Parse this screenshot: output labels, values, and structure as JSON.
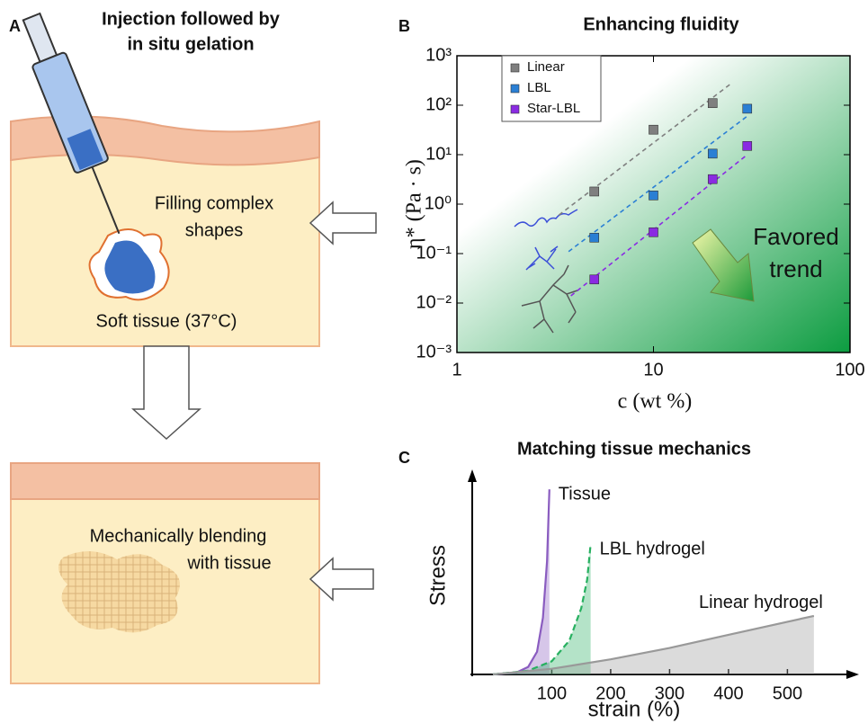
{
  "panel_a": {
    "panel_label": "A",
    "title_lines": [
      "Injection followed by",
      "in situ gelation"
    ],
    "filling_lines": [
      "Filling complex",
      "shapes"
    ],
    "tissue_label": "Soft tissue (37°C)",
    "blending_lines": [
      "Mechanically blending",
      "with tissue"
    ]
  },
  "chart_data": [
    {
      "type": "scatter",
      "panel_label": "B",
      "title": "Enhancing fluidity",
      "xlabel": "c (wt %)",
      "ylabel": "η* (Pa · s)",
      "xlim": [
        1,
        100
      ],
      "ylim": [
        0.001,
        1000
      ],
      "log_x": true,
      "log_y": true,
      "xticks": [
        1,
        10,
        100
      ],
      "yticks": [
        {
          "value": 0.001,
          "label": "10⁻³"
        },
        {
          "value": 0.01,
          "label": "10⁻²"
        },
        {
          "value": 0.1,
          "label": "10⁻¹"
        },
        {
          "value": 1,
          "label": "10⁰"
        },
        {
          "value": 10,
          "label": "10¹"
        },
        {
          "value": 100,
          "label": "10²"
        },
        {
          "value": 1000,
          "label": "10³"
        }
      ],
      "legend": "upper left",
      "series": [
        {
          "name": "Linear",
          "color": "#7f7f7f",
          "x": [
            5,
            10,
            20
          ],
          "values": [
            1.8,
            32,
            110
          ]
        },
        {
          "name": "LBL",
          "color": "#2a7fd4",
          "x": [
            5,
            10,
            20,
            30
          ],
          "values": [
            0.21,
            1.5,
            10.5,
            85
          ]
        },
        {
          "name": "Star-LBL",
          "color": "#8a2be2",
          "x": [
            5,
            10,
            20,
            30
          ],
          "values": [
            0.03,
            0.27,
            3.2,
            15
          ]
        }
      ],
      "fits": [
        {
          "color": "#7f7f7f",
          "x": [
            3.3,
            25
          ],
          "values": [
            0.6,
            280
          ]
        },
        {
          "color": "#2a7fd4",
          "x": [
            3.7,
            30
          ],
          "values": [
            0.11,
            60
          ]
        },
        {
          "color": "#8a2be2",
          "x": [
            3.8,
            30
          ],
          "values": [
            0.014,
            10
          ]
        }
      ],
      "annotation": [
        "Favored",
        "trend"
      ]
    },
    {
      "type": "line",
      "panel_label": "C",
      "title": "Matching  tissue  mechanics",
      "xlabel": "strain (%)",
      "ylabel": "Stress",
      "xlim": [
        -35,
        620
      ],
      "ylim": [
        0,
        1
      ],
      "xticks": [
        100,
        200,
        300,
        400,
        500
      ],
      "series": [
        {
          "name": "Tissue",
          "color": "#8a5cc0",
          "dash": false,
          "x": [
            0,
            40,
            60,
            75,
            85,
            92,
            96
          ],
          "values": [
            0,
            0.01,
            0.04,
            0.12,
            0.3,
            0.6,
            0.98
          ]
        },
        {
          "name": "LBL hydrogel",
          "color": "#27b060",
          "dash": true,
          "x": [
            0,
            60,
            100,
            130,
            150,
            160,
            166
          ],
          "values": [
            0,
            0.02,
            0.07,
            0.18,
            0.35,
            0.5,
            0.69
          ]
        },
        {
          "name": "Linear hydrogel",
          "color": "#999999",
          "dash": false,
          "x": [
            0,
            100,
            200,
            300,
            400,
            545
          ],
          "values": [
            0,
            0.03,
            0.08,
            0.14,
            0.21,
            0.31
          ]
        }
      ]
    }
  ]
}
